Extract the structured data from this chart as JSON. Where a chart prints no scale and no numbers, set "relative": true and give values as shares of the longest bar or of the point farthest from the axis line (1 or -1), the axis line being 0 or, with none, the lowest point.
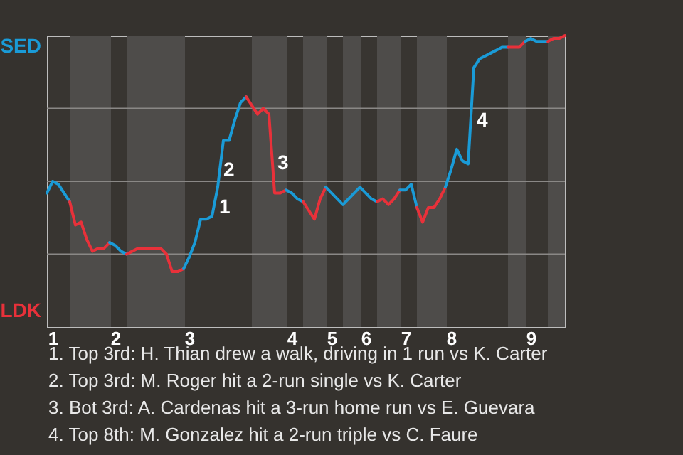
{
  "chart_data": {
    "type": "line",
    "relative": true,
    "categories": [
      null,
      "1",
      null,
      null,
      null,
      null,
      null,
      null,
      null,
      null,
      null,
      null,
      "2",
      null,
      null,
      null,
      null,
      null,
      null,
      null,
      null,
      null,
      null,
      null,
      null,
      "3",
      null,
      null,
      null,
      null,
      null,
      null,
      null,
      null,
      null,
      null,
      null,
      null,
      null,
      null,
      null,
      null,
      null,
      "4",
      null,
      null,
      null,
      null,
      null,
      null,
      "5",
      null,
      null,
      null,
      null,
      null,
      "6",
      null,
      null,
      null,
      null,
      null,
      null,
      "7",
      null,
      null,
      null,
      null,
      null,
      null,
      null,
      "8",
      null,
      null,
      null,
      null,
      null,
      null,
      null,
      null,
      null,
      null,
      null,
      null,
      null,
      "9",
      null,
      null,
      null,
      null,
      null,
      null
    ],
    "grid": false,
    "line_style": "solid",
    "ref_lines": [
      {
        "axis": "y",
        "value": 0.25,
        "color": "#8a8886"
      },
      {
        "axis": "y",
        "value": 0.5,
        "color": "#8a8886"
      },
      {
        "axis": "y",
        "value": 0.75,
        "color": "#8a8886"
      }
    ],
    "series": [
      {
        "color": "#1a9bd7",
        "values": [
          0.46,
          0.5,
          0.49,
          0.46,
          0.43,
          null,
          null,
          null,
          null,
          null,
          null,
          null,
          null,
          null,
          null,
          null,
          null,
          null,
          null,
          null,
          null,
          null,
          null,
          null,
          null,
          null,
          null,
          null,
          null,
          null,
          null,
          null,
          null,
          null,
          null,
          null,
          null,
          null,
          null,
          null,
          null,
          null,
          null,
          null,
          null,
          null,
          null,
          null,
          null,
          null,
          null,
          null,
          null,
          null,
          null,
          null,
          null,
          null,
          null,
          null,
          null,
          null,
          null,
          null,
          null,
          null,
          null,
          null,
          null,
          null,
          null,
          null,
          null,
          null,
          null,
          null,
          null,
          null,
          null,
          null,
          null,
          null,
          null,
          null,
          null,
          null,
          null,
          null,
          null,
          null,
          null,
          null
        ]
      },
      {
        "color": "#e8313a",
        "values": [
          null,
          null,
          null,
          null,
          0.43,
          0.35,
          0.36,
          0.3,
          0.26,
          0.27,
          0.27,
          0.29,
          null,
          null,
          null,
          null,
          null,
          null,
          null,
          null,
          null,
          null,
          null,
          null,
          null,
          null,
          null,
          null,
          null,
          null,
          null,
          null,
          null,
          null,
          null,
          null,
          null,
          null,
          null,
          null,
          null,
          null,
          null,
          null,
          null,
          null,
          null,
          null,
          null,
          null,
          null,
          null,
          null,
          null,
          null,
          null,
          null,
          null,
          null,
          null,
          null,
          null,
          null,
          null,
          null,
          null,
          null,
          null,
          null,
          null,
          null,
          null,
          null,
          null,
          null,
          null,
          null,
          null,
          null,
          null,
          null,
          null,
          null,
          null,
          null,
          null,
          null,
          null,
          null,
          null,
          null,
          null
        ]
      },
      {
        "color": "#1a9bd7",
        "values": [
          null,
          null,
          null,
          null,
          null,
          null,
          null,
          null,
          null,
          null,
          null,
          0.29,
          0.28,
          0.26,
          0.25,
          null,
          null,
          null,
          null,
          null,
          null,
          null,
          null,
          null,
          null,
          null,
          null,
          null,
          null,
          null,
          null,
          null,
          null,
          null,
          null,
          null,
          null,
          null,
          null,
          null,
          null,
          null,
          null,
          null,
          null,
          null,
          null,
          null,
          null,
          null,
          null,
          null,
          null,
          null,
          null,
          null,
          null,
          null,
          null,
          null,
          null,
          null,
          null,
          null,
          null,
          null,
          null,
          null,
          null,
          null,
          null,
          null,
          null,
          null,
          null,
          null,
          null,
          null,
          null,
          null,
          null,
          null,
          null,
          null,
          null,
          null,
          null,
          null,
          null,
          null,
          null,
          null
        ]
      },
      {
        "color": "#e8313a",
        "values": [
          null,
          null,
          null,
          null,
          null,
          null,
          null,
          null,
          null,
          null,
          null,
          null,
          null,
          null,
          0.25,
          0.26,
          0.27,
          0.27,
          0.27,
          0.27,
          0.27,
          0.25,
          0.19,
          0.19,
          0.2,
          null,
          null,
          null,
          null,
          null,
          null,
          null,
          null,
          null,
          null,
          null,
          null,
          null,
          null,
          null,
          null,
          null,
          null,
          null,
          null,
          null,
          null,
          null,
          null,
          null,
          null,
          null,
          null,
          null,
          null,
          null,
          null,
          null,
          null,
          null,
          null,
          null,
          null,
          null,
          null,
          null,
          null,
          null,
          null,
          null,
          null,
          null,
          null,
          null,
          null,
          null,
          null,
          null,
          null,
          null,
          null,
          null,
          null,
          null,
          null,
          null,
          null,
          null,
          null,
          null,
          null,
          null
        ]
      },
      {
        "color": "#1a9bd7",
        "values": [
          null,
          null,
          null,
          null,
          null,
          null,
          null,
          null,
          null,
          null,
          null,
          null,
          null,
          null,
          null,
          null,
          null,
          null,
          null,
          null,
          null,
          null,
          null,
          null,
          0.2,
          0.24,
          0.29,
          0.37,
          0.37,
          0.38,
          0.48,
          0.64,
          0.64,
          0.71,
          0.77,
          0.79,
          null,
          null,
          null,
          null,
          null,
          null,
          null,
          null,
          null,
          null,
          null,
          null,
          null,
          null,
          null,
          null,
          null,
          null,
          null,
          null,
          null,
          null,
          null,
          null,
          null,
          null,
          null,
          null,
          null,
          null,
          null,
          null,
          null,
          null,
          null,
          null,
          null,
          null,
          null,
          null,
          null,
          null,
          null,
          null,
          null,
          null,
          null,
          null,
          null,
          null,
          null,
          null,
          null,
          null,
          null,
          null
        ]
      },
      {
        "color": "#e8313a",
        "values": [
          null,
          null,
          null,
          null,
          null,
          null,
          null,
          null,
          null,
          null,
          null,
          null,
          null,
          null,
          null,
          null,
          null,
          null,
          null,
          null,
          null,
          null,
          null,
          null,
          null,
          null,
          null,
          null,
          null,
          null,
          null,
          null,
          null,
          null,
          null,
          0.79,
          0.76,
          0.73,
          0.75,
          0.73,
          0.46,
          0.46,
          0.47,
          null,
          null,
          null,
          null,
          null,
          null,
          null,
          null,
          null,
          null,
          null,
          null,
          null,
          null,
          null,
          null,
          null,
          null,
          null,
          null,
          null,
          null,
          null,
          null,
          null,
          null,
          null,
          null,
          null,
          null,
          null,
          null,
          null,
          null,
          null,
          null,
          null,
          null,
          null,
          null,
          null,
          null,
          null,
          null,
          null,
          null,
          null,
          null,
          null
        ]
      },
      {
        "color": "#1a9bd7",
        "values": [
          null,
          null,
          null,
          null,
          null,
          null,
          null,
          null,
          null,
          null,
          null,
          null,
          null,
          null,
          null,
          null,
          null,
          null,
          null,
          null,
          null,
          null,
          null,
          null,
          null,
          null,
          null,
          null,
          null,
          null,
          null,
          null,
          null,
          null,
          null,
          null,
          null,
          null,
          null,
          null,
          null,
          null,
          0.47,
          0.46,
          0.44,
          0.43,
          null,
          null,
          null,
          null,
          null,
          null,
          null,
          null,
          null,
          null,
          null,
          null,
          null,
          null,
          null,
          null,
          null,
          null,
          null,
          null,
          null,
          null,
          null,
          null,
          null,
          null,
          null,
          null,
          null,
          null,
          null,
          null,
          null,
          null,
          null,
          null,
          null,
          null,
          null,
          null,
          null,
          null,
          null,
          null,
          null,
          null
        ]
      },
      {
        "color": "#e8313a",
        "values": [
          null,
          null,
          null,
          null,
          null,
          null,
          null,
          null,
          null,
          null,
          null,
          null,
          null,
          null,
          null,
          null,
          null,
          null,
          null,
          null,
          null,
          null,
          null,
          null,
          null,
          null,
          null,
          null,
          null,
          null,
          null,
          null,
          null,
          null,
          null,
          null,
          null,
          null,
          null,
          null,
          null,
          null,
          null,
          null,
          null,
          0.43,
          0.4,
          0.37,
          0.44,
          0.48,
          null,
          null,
          null,
          null,
          null,
          null,
          null,
          null,
          null,
          null,
          null,
          null,
          null,
          null,
          null,
          null,
          null,
          null,
          null,
          null,
          null,
          null,
          null,
          null,
          null,
          null,
          null,
          null,
          null,
          null,
          null,
          null,
          null,
          null,
          null,
          null,
          null,
          null,
          null,
          null,
          null,
          null
        ]
      },
      {
        "color": "#1a9bd7",
        "values": [
          null,
          null,
          null,
          null,
          null,
          null,
          null,
          null,
          null,
          null,
          null,
          null,
          null,
          null,
          null,
          null,
          null,
          null,
          null,
          null,
          null,
          null,
          null,
          null,
          null,
          null,
          null,
          null,
          null,
          null,
          null,
          null,
          null,
          null,
          null,
          null,
          null,
          null,
          null,
          null,
          null,
          null,
          null,
          null,
          null,
          null,
          null,
          null,
          null,
          0.48,
          0.46,
          0.44,
          0.42,
          0.44,
          0.46,
          0.48,
          0.46,
          0.44,
          0.43,
          null,
          null,
          null,
          null,
          null,
          null,
          null,
          null,
          null,
          null,
          null,
          null,
          null,
          null,
          null,
          null,
          null,
          null,
          null,
          null,
          null,
          null,
          null,
          null,
          null,
          null,
          null,
          null,
          null,
          null,
          null,
          null,
          null
        ]
      },
      {
        "color": "#e8313a",
        "values": [
          null,
          null,
          null,
          null,
          null,
          null,
          null,
          null,
          null,
          null,
          null,
          null,
          null,
          null,
          null,
          null,
          null,
          null,
          null,
          null,
          null,
          null,
          null,
          null,
          null,
          null,
          null,
          null,
          null,
          null,
          null,
          null,
          null,
          null,
          null,
          null,
          null,
          null,
          null,
          null,
          null,
          null,
          null,
          null,
          null,
          null,
          null,
          null,
          null,
          null,
          null,
          null,
          null,
          null,
          null,
          null,
          null,
          null,
          0.43,
          0.44,
          0.42,
          0.44,
          0.47,
          null,
          null,
          null,
          null,
          null,
          null,
          null,
          null,
          null,
          null,
          null,
          null,
          null,
          null,
          null,
          null,
          null,
          null,
          null,
          null,
          null,
          null,
          null,
          null,
          null,
          null,
          null,
          null,
          null
        ]
      },
      {
        "color": "#1a9bd7",
        "values": [
          null,
          null,
          null,
          null,
          null,
          null,
          null,
          null,
          null,
          null,
          null,
          null,
          null,
          null,
          null,
          null,
          null,
          null,
          null,
          null,
          null,
          null,
          null,
          null,
          null,
          null,
          null,
          null,
          null,
          null,
          null,
          null,
          null,
          null,
          null,
          null,
          null,
          null,
          null,
          null,
          null,
          null,
          null,
          null,
          null,
          null,
          null,
          null,
          null,
          null,
          null,
          null,
          null,
          null,
          null,
          null,
          null,
          null,
          null,
          null,
          null,
          null,
          0.47,
          0.47,
          0.49,
          0.41,
          null,
          null,
          null,
          null,
          null,
          null,
          null,
          null,
          null,
          null,
          null,
          null,
          null,
          null,
          null,
          null,
          null,
          null,
          null,
          null,
          null,
          null,
          null,
          null,
          null,
          null
        ]
      },
      {
        "color": "#e8313a",
        "values": [
          null,
          null,
          null,
          null,
          null,
          null,
          null,
          null,
          null,
          null,
          null,
          null,
          null,
          null,
          null,
          null,
          null,
          null,
          null,
          null,
          null,
          null,
          null,
          null,
          null,
          null,
          null,
          null,
          null,
          null,
          null,
          null,
          null,
          null,
          null,
          null,
          null,
          null,
          null,
          null,
          null,
          null,
          null,
          null,
          null,
          null,
          null,
          null,
          null,
          null,
          null,
          null,
          null,
          null,
          null,
          null,
          null,
          null,
          null,
          null,
          null,
          null,
          null,
          null,
          null,
          0.41,
          0.36,
          0.41,
          0.41,
          0.44,
          0.48,
          null,
          null,
          null,
          null,
          null,
          null,
          null,
          null,
          null,
          null,
          null,
          null,
          null,
          null,
          null,
          null,
          null,
          null,
          null,
          null,
          null
        ]
      },
      {
        "color": "#1a9bd7",
        "values": [
          null,
          null,
          null,
          null,
          null,
          null,
          null,
          null,
          null,
          null,
          null,
          null,
          null,
          null,
          null,
          null,
          null,
          null,
          null,
          null,
          null,
          null,
          null,
          null,
          null,
          null,
          null,
          null,
          null,
          null,
          null,
          null,
          null,
          null,
          null,
          null,
          null,
          null,
          null,
          null,
          null,
          null,
          null,
          null,
          null,
          null,
          null,
          null,
          null,
          null,
          null,
          null,
          null,
          null,
          null,
          null,
          null,
          null,
          null,
          null,
          null,
          null,
          null,
          null,
          null,
          null,
          null,
          null,
          null,
          null,
          0.48,
          0.54,
          0.61,
          0.57,
          0.56,
          0.89,
          0.92,
          0.93,
          0.94,
          0.95,
          0.96,
          0.96,
          null,
          null,
          null,
          null,
          null,
          null,
          null,
          null,
          null,
          null
        ]
      },
      {
        "color": "#e8313a",
        "values": [
          null,
          null,
          null,
          null,
          null,
          null,
          null,
          null,
          null,
          null,
          null,
          null,
          null,
          null,
          null,
          null,
          null,
          null,
          null,
          null,
          null,
          null,
          null,
          null,
          null,
          null,
          null,
          null,
          null,
          null,
          null,
          null,
          null,
          null,
          null,
          null,
          null,
          null,
          null,
          null,
          null,
          null,
          null,
          null,
          null,
          null,
          null,
          null,
          null,
          null,
          null,
          null,
          null,
          null,
          null,
          null,
          null,
          null,
          null,
          null,
          null,
          null,
          null,
          null,
          null,
          null,
          null,
          null,
          null,
          null,
          null,
          null,
          null,
          null,
          null,
          null,
          null,
          null,
          null,
          null,
          null,
          0.96,
          0.96,
          0.96,
          0.98,
          null,
          null,
          null,
          null,
          null,
          null,
          null
        ]
      },
      {
        "color": "#1a9bd7",
        "values": [
          null,
          null,
          null,
          null,
          null,
          null,
          null,
          null,
          null,
          null,
          null,
          null,
          null,
          null,
          null,
          null,
          null,
          null,
          null,
          null,
          null,
          null,
          null,
          null,
          null,
          null,
          null,
          null,
          null,
          null,
          null,
          null,
          null,
          null,
          null,
          null,
          null,
          null,
          null,
          null,
          null,
          null,
          null,
          null,
          null,
          null,
          null,
          null,
          null,
          null,
          null,
          null,
          null,
          null,
          null,
          null,
          null,
          null,
          null,
          null,
          null,
          null,
          null,
          null,
          null,
          null,
          null,
          null,
          null,
          null,
          null,
          null,
          null,
          null,
          null,
          null,
          null,
          null,
          null,
          null,
          null,
          null,
          null,
          null,
          0.98,
          0.99,
          0.98,
          0.98,
          0.98,
          null,
          null,
          null
        ]
      },
      {
        "color": "#e8313a",
        "values": [
          null,
          null,
          null,
          null,
          null,
          null,
          null,
          null,
          null,
          null,
          null,
          null,
          null,
          null,
          null,
          null,
          null,
          null,
          null,
          null,
          null,
          null,
          null,
          null,
          null,
          null,
          null,
          null,
          null,
          null,
          null,
          null,
          null,
          null,
          null,
          null,
          null,
          null,
          null,
          null,
          null,
          null,
          null,
          null,
          null,
          null,
          null,
          null,
          null,
          null,
          null,
          null,
          null,
          null,
          null,
          null,
          null,
          null,
          null,
          null,
          null,
          null,
          null,
          null,
          null,
          null,
          null,
          null,
          null,
          null,
          null,
          null,
          null,
          null,
          null,
          null,
          null,
          null,
          null,
          null,
          null,
          null,
          null,
          null,
          null,
          null,
          null,
          null,
          0.98,
          0.99,
          0.99,
          1
        ]
      }
    ],
    "annotations": [
      "SED",
      "LDK",
      "1",
      "2",
      "3",
      "4",
      "1. Top 3rd: H. Thian drew a walk, driving in 1 run vs K. Carter",
      "2. Top 3rd: M. Roger hit a 2-run single vs K. Carter",
      "3. Bot 3rd: A. Cardenas hit a 3-run home run vs E. Guevara",
      "4. Top 8th: M. Gonzalez hit a 2-run triple vs C. Faure"
    ]
  }
}
